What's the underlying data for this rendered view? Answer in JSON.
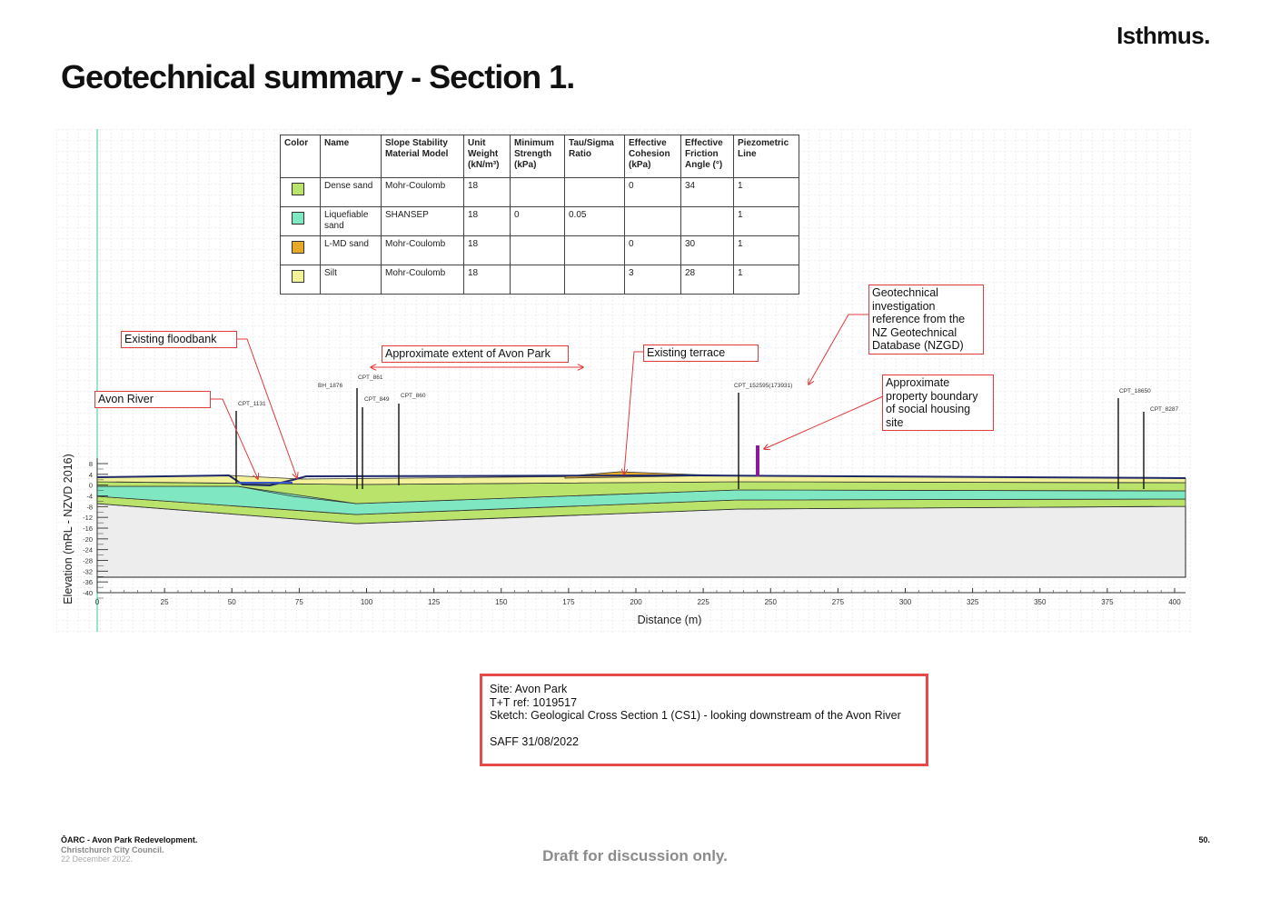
{
  "header": {
    "brand": "Isthmus.",
    "title": "Geotechnical summary - Section 1."
  },
  "material_table": {
    "columns": [
      "Color",
      "Name",
      "Slope Stability Material Model",
      "Unit Weight (kN/m³)",
      "Minimum Strength (kPa)",
      "Tau/Sigma Ratio",
      "Effective Cohesion (kPa)",
      "Effective Friction Angle (°)",
      "Piezometric Line"
    ],
    "rows": [
      {
        "color": "#b9e36a",
        "name": "Dense sand",
        "model": "Mohr-Coulomb",
        "unit_weight": "18",
        "min_strength": "",
        "tau_sigma": "",
        "cohesion": "0",
        "friction": "34",
        "piezo": "1"
      },
      {
        "color": "#7fe8c2",
        "name": "Liquefiable sand",
        "model": "SHANSEP",
        "unit_weight": "18",
        "min_strength": "0",
        "tau_sigma": "0.05",
        "cohesion": "",
        "friction": "",
        "piezo": "1"
      },
      {
        "color": "#e6a92a",
        "name": "L-MD sand",
        "model": "Mohr-Coulomb",
        "unit_weight": "18",
        "min_strength": "",
        "tau_sigma": "",
        "cohesion": "0",
        "friction": "30",
        "piezo": "1"
      },
      {
        "color": "#f3f29a",
        "name": "Silt",
        "model": "Mohr-Coulomb",
        "unit_weight": "18",
        "min_strength": "",
        "tau_sigma": "",
        "cohesion": "3",
        "friction": "28",
        "piezo": "1"
      }
    ]
  },
  "callouts": {
    "floodbank": "Existing floodbank",
    "river": "Avon River",
    "park_extent": "Approximate extent of Avon Park",
    "terrace": "Existing terrace",
    "nzgd": "Geotechnical investigation reference from the NZ Geotechnical Database (NZGD)",
    "boundary": "Approximate property boundary of social housing site"
  },
  "investigations": [
    "CPT_1131",
    "BH_1876",
    "CPT_861",
    "CPT_849",
    "CPT_860",
    "CPT_152595(173931)",
    "CPT_18650",
    "CPT_8287"
  ],
  "axes": {
    "xlabel": "Distance (m)",
    "ylabel": "Elevation (mRL - NZVD 2016)",
    "xticks": [
      "0",
      "25",
      "50",
      "75",
      "100",
      "125",
      "150",
      "175",
      "200",
      "225",
      "250",
      "275",
      "300",
      "325",
      "350",
      "375",
      "400"
    ],
    "yticks": [
      "8",
      "4",
      "0",
      "-4",
      "-8",
      "-12",
      "-16",
      "-20",
      "-24",
      "-28",
      "-32",
      "-36",
      "-40"
    ]
  },
  "info": {
    "site": "Site: Avon Park",
    "ref": "T+T ref: 1019517",
    "sketch": "Sketch: Geological Cross Section 1 (CS1) - looking downstream of the Avon River",
    "saff": "SAFF 31/08/2022"
  },
  "footer": {
    "project": "ŌARC - Avon Park Redevelopment.",
    "client": "Christchurch City Council.",
    "date": "22 December 2022.",
    "draft": "Draft for discussion only.",
    "page": "50."
  },
  "colors": {
    "dense_sand": "#b9e36a",
    "liquefiable_sand": "#7fe8c2",
    "lmd_sand": "#e6a92a",
    "silt": "#f3f29a",
    "base": "#ededed",
    "callout_border": "#e03a3a",
    "boundary_marker": "#8a1a9a"
  }
}
